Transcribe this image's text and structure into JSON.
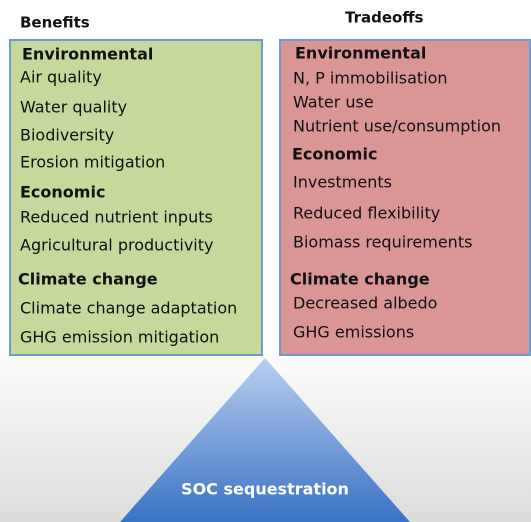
{
  "benefits": {
    "title": "Benefits",
    "sections": [
      {
        "heading": "Environmental",
        "items": [
          "Air quality",
          "Water quality",
          "Biodiversity",
          "Erosion mitigation"
        ]
      },
      {
        "heading": "Economic",
        "items": [
          "Reduced nutrient inputs",
          "Agricultural productivity"
        ]
      },
      {
        "heading": "Climate change",
        "items": [
          "Climate change adaptation",
          "GHG emission mitigation"
        ]
      }
    ]
  },
  "tradeoffs": {
    "title": "Tradeoffs",
    "sections": [
      {
        "heading": "Environmental",
        "items": [
          "N, P immobilisation",
          "Water use",
          "Nutrient use/consumption"
        ]
      },
      {
        "heading": "Economic",
        "items": [
          "Investments",
          "Reduced flexibility",
          "Biomass requirements"
        ]
      },
      {
        "heading": "Climate change",
        "items": [
          "Decreased albedo",
          "GHG emissions"
        ]
      }
    ]
  },
  "base": {
    "label": "SOC sequestration"
  }
}
